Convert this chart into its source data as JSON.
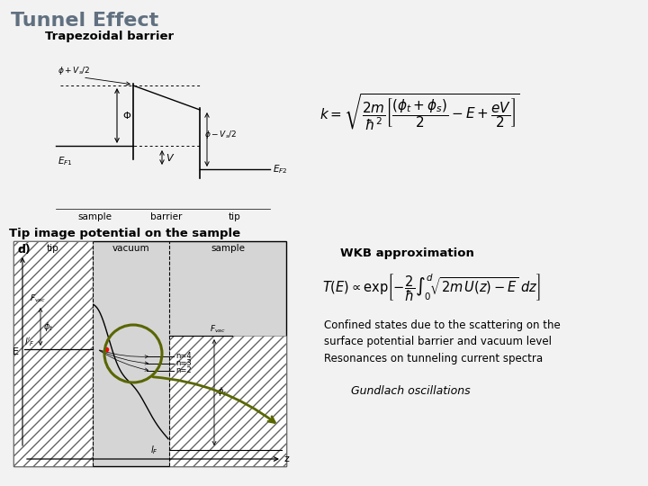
{
  "title": "Tunnel Effect",
  "title_color": "#607080",
  "section1": "Trapezoidal barrier",
  "section2": "Tip image potential on the sample",
  "wkb_label": "WKB approximation",
  "text_confined": "Confined states due to the scattering on the\nsurface potential barrier and vacuum level",
  "text_resonances": "Resonances on tunneling current spectra",
  "text_gundlach": "Gundlach oscillations",
  "slide_bg": "#f2f2f2"
}
